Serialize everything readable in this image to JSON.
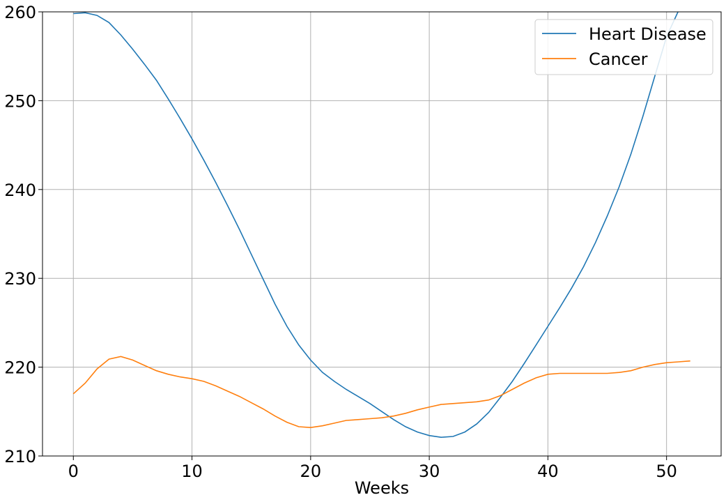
{
  "chart_data": {
    "type": "line",
    "title": "",
    "xlabel": "Weeks",
    "ylabel": "",
    "xlim": [
      -2.6,
      54.6
    ],
    "ylim": [
      210,
      260
    ],
    "xticks": [
      0,
      10,
      20,
      30,
      40,
      50
    ],
    "yticks": [
      210,
      220,
      230,
      240,
      250,
      260
    ],
    "grid": true,
    "legend": "top-right",
    "series": [
      {
        "name": "Heart Disease",
        "color": "#1f77b4",
        "x": [
          0,
          1,
          2,
          3,
          4,
          5,
          6,
          7,
          8,
          9,
          10,
          11,
          12,
          13,
          14,
          15,
          16,
          17,
          18,
          19,
          20,
          21,
          22,
          23,
          24,
          25,
          26,
          27,
          28,
          29,
          30,
          31,
          32,
          33,
          34,
          35,
          36,
          37,
          38,
          39,
          40,
          41,
          42,
          43,
          44,
          45,
          46,
          47,
          48,
          49,
          50,
          51,
          52
        ],
        "values": [
          259.8,
          259.9,
          259.6,
          258.8,
          257.4,
          255.8,
          254.1,
          252.3,
          250.2,
          248.0,
          245.7,
          243.3,
          240.8,
          238.2,
          235.5,
          232.7,
          229.9,
          227.1,
          224.6,
          222.5,
          220.8,
          219.4,
          218.4,
          217.5,
          216.7,
          215.9,
          215.0,
          214.1,
          213.3,
          212.7,
          212.3,
          212.1,
          212.2,
          212.7,
          213.6,
          214.9,
          216.6,
          218.4,
          220.4,
          222.5,
          224.6,
          226.7,
          228.9,
          231.3,
          234.0,
          237.0,
          240.3,
          244.0,
          248.2,
          252.7,
          257.2,
          260.1,
          262.3
        ]
      },
      {
        "name": "Cancer",
        "color": "#ff7f0e",
        "x": [
          0,
          1,
          2,
          3,
          4,
          5,
          6,
          7,
          8,
          9,
          10,
          11,
          12,
          13,
          14,
          15,
          16,
          17,
          18,
          19,
          20,
          21,
          22,
          23,
          24,
          25,
          26,
          27,
          28,
          29,
          30,
          31,
          32,
          33,
          34,
          35,
          36,
          37,
          38,
          39,
          40,
          41,
          42,
          43,
          44,
          45,
          46,
          47,
          48,
          49,
          50,
          51,
          52
        ],
        "values": [
          217.0,
          218.2,
          219.8,
          220.9,
          221.2,
          220.8,
          220.2,
          219.6,
          219.2,
          218.9,
          218.7,
          218.4,
          217.9,
          217.3,
          216.7,
          216.0,
          215.3,
          214.5,
          213.8,
          213.3,
          213.2,
          213.4,
          213.7,
          214.0,
          214.1,
          214.2,
          214.3,
          214.5,
          214.8,
          215.2,
          215.5,
          215.8,
          215.9,
          216.0,
          216.1,
          216.3,
          216.8,
          217.5,
          218.2,
          218.8,
          219.2,
          219.3,
          219.3,
          219.3,
          219.3,
          219.3,
          219.4,
          219.6,
          220.0,
          220.3,
          220.5,
          220.6,
          220.7
        ]
      }
    ]
  }
}
